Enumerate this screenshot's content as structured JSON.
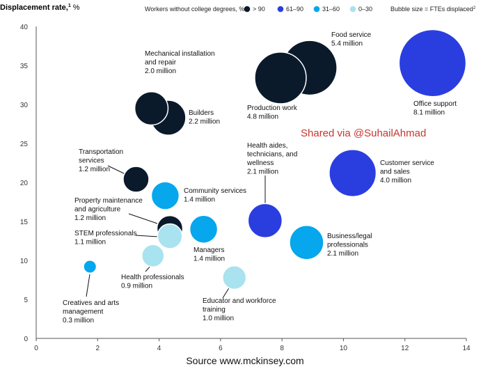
{
  "chart_data": {
    "type": "scatter",
    "subtype": "bubble",
    "ylabel": "Displacement rate,",
    "ylabel_sup": "1",
    "ylabel_unit": " %",
    "legend_title": "Workers without college degrees, %:",
    "legend": [
      {
        "label": "> 90",
        "color": "#0b1a2b"
      },
      {
        "label": "61–90",
        "color": "#2a3ee0"
      },
      {
        "label": "31–60",
        "color": "#06a7ec"
      },
      {
        "label": "0–30",
        "color": "#a8e3ef"
      }
    ],
    "size_note": "Bubble size = FTEs displaced",
    "size_note_sup": "2",
    "xlim": [
      0,
      14
    ],
    "ylim": [
      0,
      40
    ],
    "xticks": [
      0,
      2,
      4,
      6,
      8,
      10,
      12,
      14
    ],
    "yticks": [
      0,
      5,
      10,
      15,
      20,
      25,
      30,
      35,
      40
    ],
    "grid": false,
    "bubbles": [
      {
        "name": "Office support",
        "value": "8.1 million",
        "x": 12.9,
        "y": 35.3,
        "fte": 8.1,
        "group": "61–90",
        "lines": [
          "Office support",
          "8.1 million"
        ]
      },
      {
        "name": "Food service",
        "value": "5.4 million",
        "x": 8.9,
        "y": 34.7,
        "fte": 5.4,
        "group": "> 90",
        "lines": [
          "Food service",
          "5.4 million"
        ]
      },
      {
        "name": "Production work",
        "value": "4.8 million",
        "x": 7.95,
        "y": 33.4,
        "fte": 4.8,
        "group": "> 90",
        "lines": [
          "Production work",
          "4.8 million"
        ]
      },
      {
        "name": "Customer service and sales",
        "value": "4.0 million",
        "x": 10.3,
        "y": 21.2,
        "fte": 4.0,
        "group": "61–90",
        "lines": [
          "Customer service",
          "and sales",
          "4.0 million"
        ]
      },
      {
        "name": "Builders",
        "value": "2.2 million",
        "x": 4.3,
        "y": 28.3,
        "fte": 2.2,
        "group": "> 90",
        "lines": [
          "Builders",
          "2.2 million"
        ]
      },
      {
        "name": "Mechanical installation and repair",
        "value": "2.0 million",
        "x": 3.75,
        "y": 29.5,
        "fte": 2.0,
        "group": "> 90",
        "lines": [
          "Mechanical installation",
          "and repair",
          "2.0 million"
        ]
      },
      {
        "name": "Health aides, technicians, and wellness",
        "value": "2.1 million",
        "x": 7.45,
        "y": 15.1,
        "fte": 2.1,
        "group": "61–90",
        "lines": [
          "Health aides,",
          "technicians, and",
          "wellness",
          "2.1 million"
        ]
      },
      {
        "name": "Business/legal professionals",
        "value": "2.1 million",
        "x": 8.8,
        "y": 12.3,
        "fte": 2.1,
        "group": "31–60",
        "lines": [
          "Business/legal",
          "professionals",
          "2.1 million"
        ]
      },
      {
        "name": "Managers",
        "value": "1.4 million",
        "x": 5.45,
        "y": 14.0,
        "fte": 1.4,
        "group": "31–60",
        "lines": [
          "Managers",
          "1.4 million"
        ]
      },
      {
        "name": "Community services",
        "value": "1.4 million",
        "x": 4.2,
        "y": 18.3,
        "fte": 1.4,
        "group": "31–60",
        "lines": [
          "Community services",
          "1.4 million"
        ]
      },
      {
        "name": "Transportation services",
        "value": "1.2 million",
        "x": 3.25,
        "y": 20.4,
        "fte": 1.2,
        "group": "> 90",
        "lines": [
          "Transportation",
          "services",
          "1.2 million"
        ]
      },
      {
        "name": "Property maintenance and agriculture",
        "value": "1.2 million",
        "x": 4.35,
        "y": 14.1,
        "fte": 1.2,
        "group": "> 90",
        "lines": [
          "Property maintenance",
          "and agriculture",
          "1.2 million"
        ]
      },
      {
        "name": "STEM professionals",
        "value": "1.1 million",
        "x": 4.35,
        "y": 13.1,
        "fte": 1.1,
        "group": "0–30",
        "lines": [
          "STEM professionals",
          "1.1 million"
        ]
      },
      {
        "name": "Educator and workforce training",
        "value": "1.0 million",
        "x": 6.45,
        "y": 7.8,
        "fte": 1.0,
        "group": "0–30",
        "lines": [
          "Educator and workforce",
          "training",
          "1.0 million"
        ]
      },
      {
        "name": "Health professionals",
        "value": "0.9 million",
        "x": 3.8,
        "y": 10.6,
        "fte": 0.9,
        "group": "0–30",
        "lines": [
          "Health professionals",
          "0.9 million"
        ]
      },
      {
        "name": "Creatives and arts management",
        "value": "0.3 million",
        "x": 1.75,
        "y": 9.2,
        "fte": 0.3,
        "group": "31–60",
        "lines": [
          "Creatives and arts",
          "management",
          "0.3 million"
        ]
      }
    ]
  },
  "watermark": "Shared via @SuhailAhmad",
  "source": "Source  www.mckinsey.com"
}
